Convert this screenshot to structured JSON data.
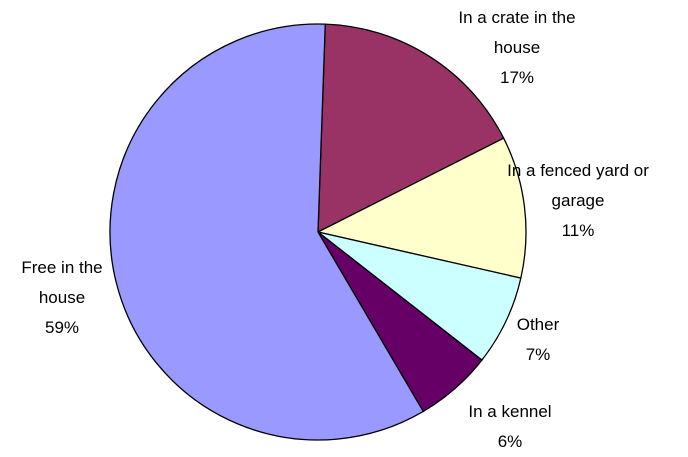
{
  "chart_data": {
    "type": "pie",
    "categories": [
      "In a crate in the house",
      "In a fenced yard or garage",
      "Other",
      "In a kennel",
      "Free in the house"
    ],
    "values": [
      17,
      11,
      7,
      6,
      59
    ],
    "value_labels": [
      "17%",
      "11%",
      "7%",
      "6%",
      "59%"
    ],
    "colors": [
      "#993366",
      "#FFFFCC",
      "#CCFFFF",
      "#660066",
      "#9999FF"
    ]
  }
}
